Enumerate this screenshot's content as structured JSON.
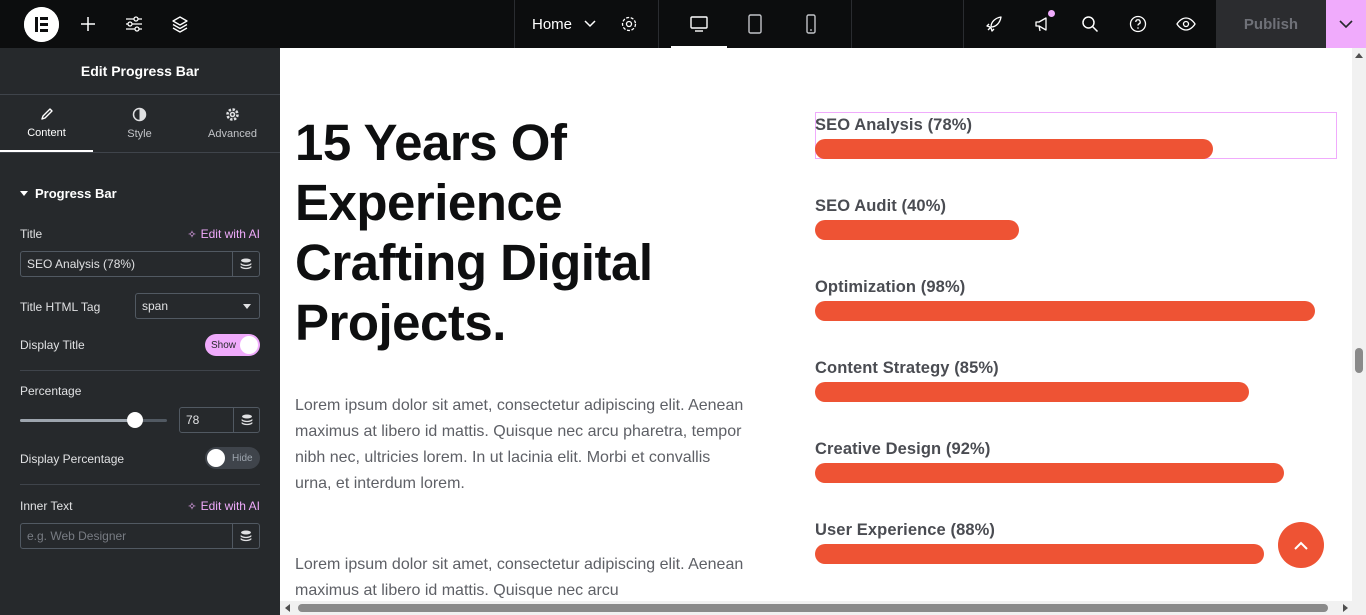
{
  "topbar": {
    "page_name": "Home",
    "publish_label": "Publish",
    "icons": [
      "elementor-logo-icon",
      "add-icon",
      "settings-sliders-icon",
      "layers-icon",
      "chevron-down-icon",
      "gear-icon",
      "desktop-icon",
      "tablet-icon",
      "mobile-icon",
      "rocket-icon",
      "announcement-icon",
      "search-icon",
      "help-icon",
      "preview-eye-icon",
      "chevron-down-icon"
    ],
    "accent_color": "#f0abfc"
  },
  "sidebar": {
    "title": "Edit Progress Bar",
    "tabs": [
      {
        "label": "Content",
        "icon": "pencil-icon",
        "active": true
      },
      {
        "label": "Style",
        "icon": "half-circle-icon",
        "active": false
      },
      {
        "label": "Advanced",
        "icon": "gear-icon",
        "active": false
      }
    ],
    "section_title": "Progress Bar",
    "title_label": "Title",
    "edit_with_ai": "Edit with AI",
    "title_value": "SEO Analysis (78%)",
    "html_tag_label": "Title HTML Tag",
    "html_tag_value": "span",
    "display_title_label": "Display Title",
    "display_title_state": "Show",
    "percentage_label": "Percentage",
    "percentage_value": "78",
    "percentage_fraction": 0.78,
    "display_percentage_label": "Display Percentage",
    "display_percentage_state": "Hide",
    "inner_text_label": "Inner Text",
    "inner_text_placeholder": "e.g. Web Designer"
  },
  "canvas": {
    "heading": "15 Years Of Experience Crafting Digital Projects.",
    "paragraph1": "Lorem ipsum dolor sit amet, consectetur adipiscing elit. Aenean maximus at libero id mattis. Quisque nec arcu pharetra, tempor nibh nec, ultricies lorem. In ut lacinia elit. Morbi et convallis urna, et interdum lorem.",
    "paragraph2": "Lorem ipsum dolor sit amet, consectetur adipiscing elit. Aenean maximus at libero id mattis. Quisque nec arcu",
    "bar_color": "#ee5334",
    "progress_bars": [
      {
        "title": "SEO Analysis (78%)",
        "percent": 78
      },
      {
        "title": "SEO Audit (40%)",
        "percent": 40
      },
      {
        "title": "Optimization (98%)",
        "percent": 98
      },
      {
        "title": "Content Strategy (85%)",
        "percent": 85
      },
      {
        "title": "Creative Design (92%)",
        "percent": 92
      },
      {
        "title": "User Experience (88%)",
        "percent": 88
      }
    ]
  }
}
